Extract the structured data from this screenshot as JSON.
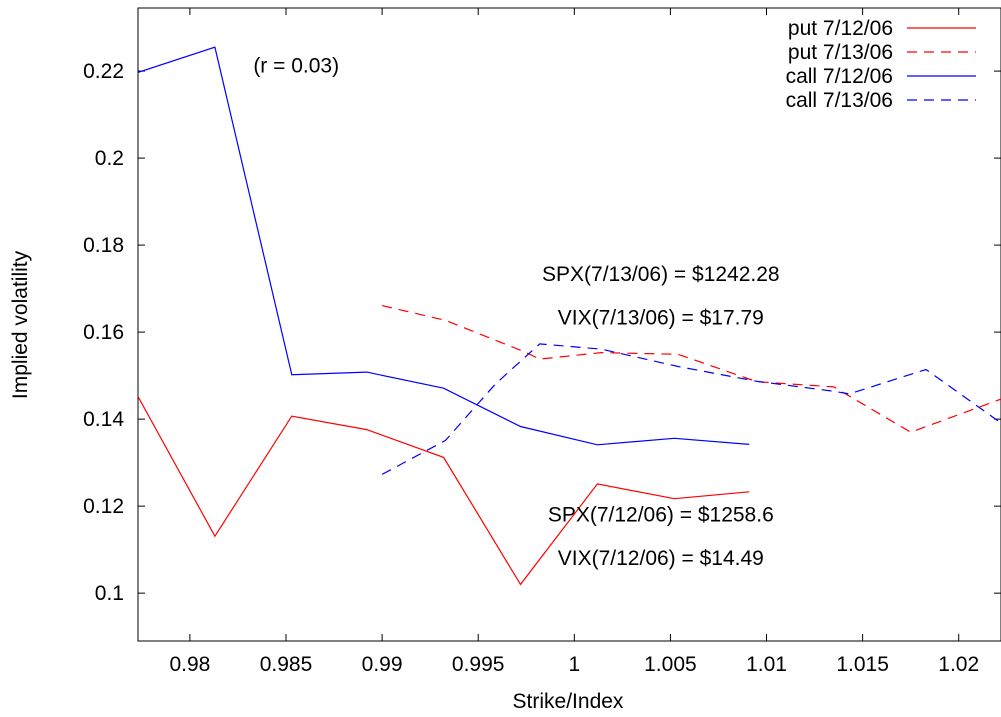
{
  "chart_data": {
    "type": "line",
    "xlabel": "Strike/Index",
    "ylabel": "Implied volatility",
    "xlim": [
      0.9773,
      1.0222
    ],
    "ylim": [
      0.089,
      0.2345
    ],
    "xticks": [
      0.98,
      0.985,
      0.99,
      0.995,
      1,
      1.005,
      1.01,
      1.015,
      1.02
    ],
    "yticks": [
      0.1,
      0.12,
      0.14,
      0.16,
      0.18,
      0.2,
      0.22
    ],
    "xtick_labels": [
      "0.98",
      "0.985",
      "0.99",
      "0.995",
      "1",
      "1.005",
      "1.01",
      "1.015",
      "1.02"
    ],
    "ytick_labels": [
      "0.1",
      "0.12",
      "0.14",
      "0.16",
      "0.18",
      "0.2",
      "0.22"
    ],
    "grid": false,
    "legend_position": "top-right",
    "series": [
      {
        "name": "put 7/12/06",
        "color": "#ff0000",
        "dash": "solid",
        "x": [
          0.9773,
          0.9813,
          0.9853,
          0.9892,
          0.9932,
          0.9972,
          1.0012,
          1.0052,
          1.0091
        ],
        "y": [
          0.1452,
          0.1131,
          0.1407,
          0.1376,
          0.1312,
          0.102,
          0.1251,
          0.1217,
          0.1233
        ]
      },
      {
        "name": "put 7/13/06",
        "color": "#ff0000",
        "dash": "dashed",
        "x": [
          0.99,
          0.9933,
          0.9974,
          0.9982,
          1.0014,
          1.0054,
          1.0095,
          1.0135,
          1.0175,
          1.0222
        ],
        "y": [
          0.1661,
          0.1627,
          0.1555,
          0.1538,
          0.1553,
          0.1549,
          0.1486,
          0.1474,
          0.137,
          0.1446
        ]
      },
      {
        "name": "call 7/12/06",
        "color": "#0000ff",
        "dash": "solid",
        "x": [
          0.9773,
          0.9813,
          0.9853,
          0.9892,
          0.9932,
          0.9972,
          1.0012,
          1.0052,
          1.0091
        ],
        "y": [
          0.2197,
          0.2255,
          0.1502,
          0.1508,
          0.1471,
          0.1383,
          0.1341,
          0.1356,
          0.1342
        ]
      },
      {
        "name": "call 7/13/06",
        "color": "#0000ff",
        "dash": "dashed",
        "x": [
          0.99,
          0.9933,
          0.9959,
          0.9982,
          1.0014,
          1.0054,
          1.0095,
          1.0135,
          1.0143,
          1.0183,
          1.0222
        ],
        "y": [
          0.1273,
          0.1351,
          0.1481,
          0.1573,
          0.1561,
          0.1521,
          0.1487,
          0.1464,
          0.1458,
          0.1514,
          0.1391
        ]
      }
    ],
    "annotations": [
      {
        "text": "(r = 0.03)",
        "x": 0.9833,
        "y": 0.2197
      },
      {
        "text": "SPX(7/13/06) = $1242.28",
        "x": 1.0045,
        "y": 0.1718
      },
      {
        "text": "VIX(7/13/06) = $17.79",
        "x": 1.0045,
        "y": 0.1618
      },
      {
        "text": "SPX(7/12/06) = $1258.6",
        "x": 1.0045,
        "y": 0.1165
      },
      {
        "text": "VIX(7/12/06) = $14.49",
        "x": 1.0045,
        "y": 0.1065
      }
    ]
  }
}
